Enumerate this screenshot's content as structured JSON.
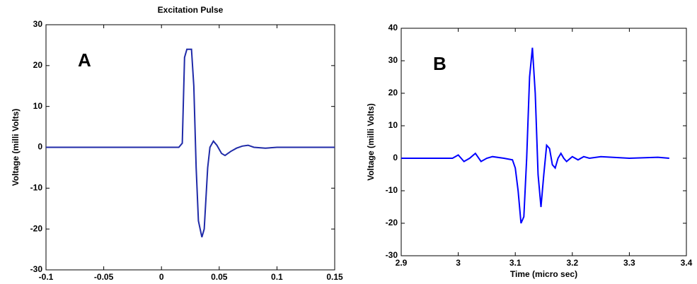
{
  "chart_data": [
    {
      "type": "line",
      "title": "Excitation Pulse",
      "annotation": "A",
      "x_label": "Time (micro sec)",
      "y_label": "Voltage (milli Volts)",
      "color": "#1f2aa8",
      "x": [
        -0.1,
        -0.05,
        0,
        0.015,
        0.018,
        0.02,
        0.022,
        0.026,
        0.028,
        0.03,
        0.032,
        0.035,
        0.037,
        0.04,
        0.042,
        0.045,
        0.048,
        0.052,
        0.055,
        0.06,
        0.065,
        0.07,
        0.075,
        0.08,
        0.09,
        0.1,
        0.15
      ],
      "values": [
        0,
        0,
        0,
        0,
        1,
        22,
        24,
        24,
        15,
        -5,
        -18,
        -22,
        -20,
        -5,
        0,
        1.5,
        0.5,
        -1.5,
        -2,
        -1,
        -0.2,
        0.3,
        0.5,
        0,
        -0.2,
        0,
        0
      ],
      "xlim": [
        -0.1,
        0.15
      ],
      "xticks": [
        -0.1,
        -0.05,
        0,
        0.05,
        0.1,
        0.15
      ],
      "ylim": [
        -30,
        30
      ],
      "yticks": [
        -30,
        -20,
        -10,
        0,
        10,
        20,
        30
      ]
    },
    {
      "type": "line",
      "annotation": "B",
      "x_label": "Time (micro sec)",
      "y_label": "Voltage (milli Volts)",
      "color": "#0000ff",
      "x": [
        2.9,
        2.95,
        2.99,
        3.0,
        3.01,
        3.02,
        3.03,
        3.04,
        3.05,
        3.06,
        3.08,
        3.095,
        3.1,
        3.105,
        3.11,
        3.115,
        3.12,
        3.125,
        3.13,
        3.135,
        3.14,
        3.145,
        3.15,
        3.155,
        3.16,
        3.165,
        3.17,
        3.175,
        3.18,
        3.185,
        3.19,
        3.2,
        3.21,
        3.22,
        3.23,
        3.25,
        3.3,
        3.35,
        3.37
      ],
      "values": [
        0,
        0,
        0,
        1,
        -1,
        0,
        1.5,
        -1,
        0,
        0.5,
        0,
        -0.5,
        -3,
        -10,
        -20,
        -18,
        0,
        25,
        34,
        20,
        -5,
        -15,
        -5,
        4,
        3,
        -2,
        -3,
        0,
        1.5,
        0,
        -1,
        0.5,
        -0.5,
        0.5,
        0,
        0.5,
        0,
        0.3,
        0
      ],
      "xlim": [
        2.9,
        3.4
      ],
      "xticks": [
        2.9,
        3,
        3.1,
        3.2,
        3.3,
        3.4
      ],
      "ylim": [
        -30,
        40
      ],
      "yticks": [
        -30,
        -20,
        -10,
        0,
        10,
        20,
        30,
        40
      ]
    }
  ]
}
